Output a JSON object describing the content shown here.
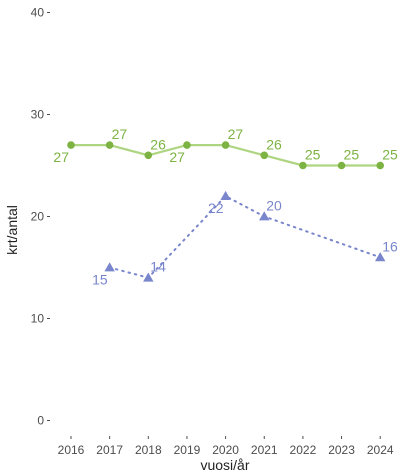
{
  "chart_data": {
    "type": "line",
    "xlabel": "vuosi/år",
    "ylabel": "krt/antal",
    "ylim": [
      0,
      40
    ],
    "yticks": [
      0,
      10,
      20,
      30,
      40
    ],
    "grid": false,
    "x": [
      "2016",
      "2017",
      "2018",
      "2019",
      "2020",
      "2021",
      "2022",
      "2023",
      "2024"
    ],
    "series": [
      {
        "color": "#7cb342",
        "line_color": "#aed581",
        "marker": "circle",
        "line_style": "solid",
        "points": [
          {
            "x": "2016",
            "y": 27,
            "label": "27",
            "label_pos": "below-left"
          },
          {
            "x": "2017",
            "y": 27,
            "label": "27",
            "label_pos": "above-right"
          },
          {
            "x": "2018",
            "y": 26,
            "label": "26",
            "label_pos": "above-right"
          },
          {
            "x": "2019",
            "y": 27,
            "label": "27",
            "label_pos": "below-left"
          },
          {
            "x": "2020",
            "y": 27,
            "label": "27",
            "label_pos": "above-right"
          },
          {
            "x": "2021",
            "y": 26,
            "label": "26",
            "label_pos": "above-right"
          },
          {
            "x": "2022",
            "y": 25,
            "label": "25",
            "label_pos": "above-right"
          },
          {
            "x": "2023",
            "y": 25,
            "label": "25",
            "label_pos": "above-right"
          },
          {
            "x": "2024",
            "y": 25,
            "label": "25",
            "label_pos": "above-right"
          }
        ]
      },
      {
        "color": "#7986cb",
        "line_color": "#7986cb",
        "marker": "triangle",
        "line_style": "dotted",
        "points": [
          {
            "x": "2017",
            "y": 15,
            "label": "15",
            "label_pos": "below-left"
          },
          {
            "x": "2018",
            "y": 14,
            "label": "14",
            "label_pos": "above-right"
          },
          {
            "x": "2020",
            "y": 22,
            "label": "22",
            "label_pos": "below-left"
          },
          {
            "x": "2021",
            "y": 20,
            "label": "20",
            "label_pos": "above-right"
          },
          {
            "x": "2024",
            "y": 16,
            "label": "16",
            "label_pos": "above-right"
          }
        ]
      }
    ]
  }
}
